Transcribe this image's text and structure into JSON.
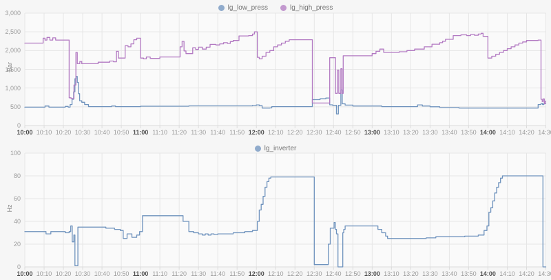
{
  "colors": {
    "low_press": "#6e92bd",
    "high_press": "#b279c2",
    "inverter": "#6e92bd",
    "grid": "#e6e6e6",
    "plot_bg": "#fafafa",
    "axis_line": "#dcdcdc"
  },
  "x_axis": {
    "tick_labels": [
      "10:00",
      "10:10",
      "10:20",
      "10:30",
      "10:40",
      "10:50",
      "11:00",
      "11:10",
      "11:20",
      "11:30",
      "11:40",
      "11:50",
      "12:00",
      "12:10",
      "12:20",
      "12:30",
      "12:40",
      "12:50",
      "13:00",
      "13:10",
      "13:20",
      "13:30",
      "13:40",
      "13:50",
      "14:00",
      "14:10",
      "14:20",
      "14:30"
    ],
    "tick_minutes": [
      0,
      10,
      20,
      30,
      40,
      50,
      60,
      70,
      80,
      90,
      100,
      110,
      120,
      130,
      140,
      150,
      160,
      170,
      180,
      190,
      200,
      210,
      220,
      230,
      240,
      250,
      260,
      270
    ]
  },
  "chart_data": [
    {
      "type": "line",
      "ylabel": "Bar",
      "ylim": [
        0,
        3000
      ],
      "yticks": [
        0,
        500,
        1000,
        1500,
        2000,
        2500,
        3000
      ],
      "ytick_labels": [
        "0",
        "500",
        "1,000",
        "1,500",
        "2,000",
        "2,500",
        "3,000"
      ],
      "x_range_min": [
        0,
        270
      ],
      "grid": true,
      "legend_position": "top-center",
      "series": [
        {
          "name": "lg_low_press",
          "color_key": "low_press",
          "points": [
            [
              0,
              490
            ],
            [
              10.5,
              520
            ],
            [
              12.5,
              490
            ],
            [
              21,
              510
            ],
            [
              22.5,
              490
            ],
            [
              23.5,
              560
            ],
            [
              24.5,
              700
            ],
            [
              25.3,
              900
            ],
            [
              26,
              1250
            ],
            [
              26.6,
              1310
            ],
            [
              27.2,
              1150
            ],
            [
              27.8,
              850
            ],
            [
              28.4,
              660
            ],
            [
              29.5,
              620
            ],
            [
              31,
              560
            ],
            [
              33,
              505
            ],
            [
              45,
              520
            ],
            [
              47,
              505
            ],
            [
              60,
              515
            ],
            [
              85,
              525
            ],
            [
              118,
              535
            ],
            [
              120,
              550
            ],
            [
              121.5,
              530
            ],
            [
              123,
              465
            ],
            [
              127,
              470
            ],
            [
              128,
              505
            ],
            [
              149,
              690
            ],
            [
              153,
              715
            ],
            [
              156,
              735
            ],
            [
              158,
              553
            ],
            [
              159.5,
              540
            ],
            [
              161.5,
              310
            ],
            [
              162.5,
              540
            ],
            [
              163.8,
              950
            ],
            [
              164.5,
              580
            ],
            [
              166,
              545
            ],
            [
              170,
              520
            ],
            [
              185,
              505
            ],
            [
              203.5,
              550
            ],
            [
              206,
              520
            ],
            [
              210,
              500
            ],
            [
              215,
              480
            ],
            [
              225,
              465
            ],
            [
              250,
              465
            ],
            [
              266,
              560
            ],
            [
              267.5,
              590
            ],
            [
              268.3,
              560
            ],
            [
              269,
              590
            ]
          ]
        },
        {
          "name": "lg_high_press",
          "color_key": "high_press",
          "points": [
            [
              0,
              2200
            ],
            [
              9.5,
              2330
            ],
            [
              10.5,
              2280
            ],
            [
              11.5,
              2350
            ],
            [
              13,
              2280
            ],
            [
              14.5,
              2340
            ],
            [
              16,
              2280
            ],
            [
              23,
              740
            ],
            [
              24,
              720
            ],
            [
              25.5,
              1080
            ],
            [
              26.5,
              1950
            ],
            [
              27.2,
              1650
            ],
            [
              28.5,
              1710
            ],
            [
              29.5,
              1650
            ],
            [
              38,
              1690
            ],
            [
              44,
              1720
            ],
            [
              46,
              1700
            ],
            [
              47.5,
              1980
            ],
            [
              48.5,
              1800
            ],
            [
              52,
              2130
            ],
            [
              53.5,
              2100
            ],
            [
              55,
              2180
            ],
            [
              56.5,
              2290
            ],
            [
              58,
              2330
            ],
            [
              60,
              1800
            ],
            [
              61.5,
              1780
            ],
            [
              63,
              1830
            ],
            [
              65,
              1790
            ],
            [
              70,
              1830
            ],
            [
              80.5,
              2100
            ],
            [
              81.5,
              2245
            ],
            [
              82.5,
              1990
            ],
            [
              83.5,
              1920
            ],
            [
              87,
              2075
            ],
            [
              88.5,
              2030
            ],
            [
              90,
              2090
            ],
            [
              92,
              2040
            ],
            [
              94,
              2090
            ],
            [
              96,
              2165
            ],
            [
              99,
              2150
            ],
            [
              101,
              2180
            ],
            [
              103,
              2210
            ],
            [
              105,
              2190
            ],
            [
              106.5,
              2240
            ],
            [
              108,
              2270
            ],
            [
              111,
              2390
            ],
            [
              116,
              2400
            ],
            [
              118,
              2440
            ],
            [
              119,
              2500
            ],
            [
              120.5,
              1820
            ],
            [
              121.5,
              1780
            ],
            [
              123,
              1850
            ],
            [
              125,
              1950
            ],
            [
              127,
              2000
            ],
            [
              129,
              2100
            ],
            [
              131,
              2150
            ],
            [
              133,
              2200
            ],
            [
              135,
              2250
            ],
            [
              137,
              2290
            ],
            [
              149,
              600
            ],
            [
              158,
              1810
            ],
            [
              161,
              860
            ],
            [
              162,
              1480
            ],
            [
              162.7,
              860
            ],
            [
              163.8,
              1515
            ],
            [
              164.4,
              860
            ],
            [
              165,
              1860
            ],
            [
              180,
              1920
            ],
            [
              182,
              1980
            ],
            [
              184,
              2040
            ],
            [
              186,
              1950
            ],
            [
              194,
              1970
            ],
            [
              198,
              2000
            ],
            [
              202,
              2040
            ],
            [
              207,
              2100
            ],
            [
              211,
              2170
            ],
            [
              215,
              2210
            ],
            [
              216.5,
              2250
            ],
            [
              218,
              2300
            ],
            [
              222,
              2400
            ],
            [
              226,
              2420
            ],
            [
              229,
              2400
            ],
            [
              231,
              2430
            ],
            [
              233,
              2410
            ],
            [
              235,
              2440
            ],
            [
              236.5,
              2460
            ],
            [
              237.5,
              2380
            ],
            [
              240,
              1800
            ],
            [
              242,
              1850
            ],
            [
              244,
              1900
            ],
            [
              246,
              1950
            ],
            [
              248,
              2000
            ],
            [
              250,
              2050
            ],
            [
              252,
              2100
            ],
            [
              254,
              2150
            ],
            [
              256,
              2200
            ],
            [
              258,
              2230
            ],
            [
              260,
              2270
            ],
            [
              266,
              2280
            ],
            [
              267.5,
              700
            ],
            [
              268.1,
              640
            ],
            [
              268.6,
              710
            ],
            [
              269.2,
              580
            ],
            [
              269.7,
              650
            ]
          ]
        }
      ]
    },
    {
      "type": "line",
      "ylabel": "Hz",
      "ylim": [
        0,
        100
      ],
      "yticks": [
        0,
        20,
        40,
        60,
        80,
        100
      ],
      "ytick_labels": [
        "0",
        "20",
        "40",
        "60",
        "80",
        "100"
      ],
      "x_range_min": [
        0,
        270
      ],
      "grid": true,
      "legend_position": "top-center",
      "series": [
        {
          "name": "lg_inverter",
          "color_key": "inverter",
          "points": [
            [
              0,
              31
            ],
            [
              11,
              29
            ],
            [
              13.5,
              31
            ],
            [
              21,
              30
            ],
            [
              23,
              31
            ],
            [
              23.8,
              36
            ],
            [
              24.6,
              22
            ],
            [
              25.4,
              28
            ],
            [
              26,
              1
            ],
            [
              27.5,
              35
            ],
            [
              42,
              34
            ],
            [
              46.5,
              33
            ],
            [
              49.5,
              32
            ],
            [
              51,
              25
            ],
            [
              53,
              29
            ],
            [
              55.5,
              26
            ],
            [
              58,
              28
            ],
            [
              59.5,
              31
            ],
            [
              61,
              45
            ],
            [
              82,
              40
            ],
            [
              85,
              31
            ],
            [
              87.5,
              30
            ],
            [
              90,
              29
            ],
            [
              92,
              28
            ],
            [
              93.5,
              29
            ],
            [
              95,
              28
            ],
            [
              96.5,
              29
            ],
            [
              98,
              28.5
            ],
            [
              100,
              29
            ],
            [
              108,
              30
            ],
            [
              114,
              31
            ],
            [
              118,
              32
            ],
            [
              120.5,
              40
            ],
            [
              121.5,
              50
            ],
            [
              122.5,
              55
            ],
            [
              123.5,
              62
            ],
            [
              124.5,
              70
            ],
            [
              125.5,
              75
            ],
            [
              126.5,
              78
            ],
            [
              127.5,
              79
            ],
            [
              150,
              2
            ],
            [
              157.3,
              20
            ],
            [
              158.3,
              34
            ],
            [
              160.3,
              39
            ],
            [
              160.9,
              33
            ],
            [
              161.5,
              29
            ],
            [
              162.3,
              0
            ],
            [
              164.8,
              30
            ],
            [
              165.3,
              33
            ],
            [
              166,
              36
            ],
            [
              183,
              33
            ],
            [
              185,
              30
            ],
            [
              187,
              27
            ],
            [
              188,
              25
            ],
            [
              208,
              25.5
            ],
            [
              213,
              26.5
            ],
            [
              228,
              27
            ],
            [
              235,
              28
            ],
            [
              238,
              32
            ],
            [
              239.5,
              36
            ],
            [
              240.5,
              48
            ],
            [
              241.5,
              52
            ],
            [
              242.5,
              58
            ],
            [
              243.5,
              65
            ],
            [
              244.5,
              70
            ],
            [
              245.5,
              74
            ],
            [
              246.5,
              78
            ],
            [
              247.5,
              80
            ],
            [
              268.5,
              0
            ]
          ]
        }
      ]
    }
  ]
}
